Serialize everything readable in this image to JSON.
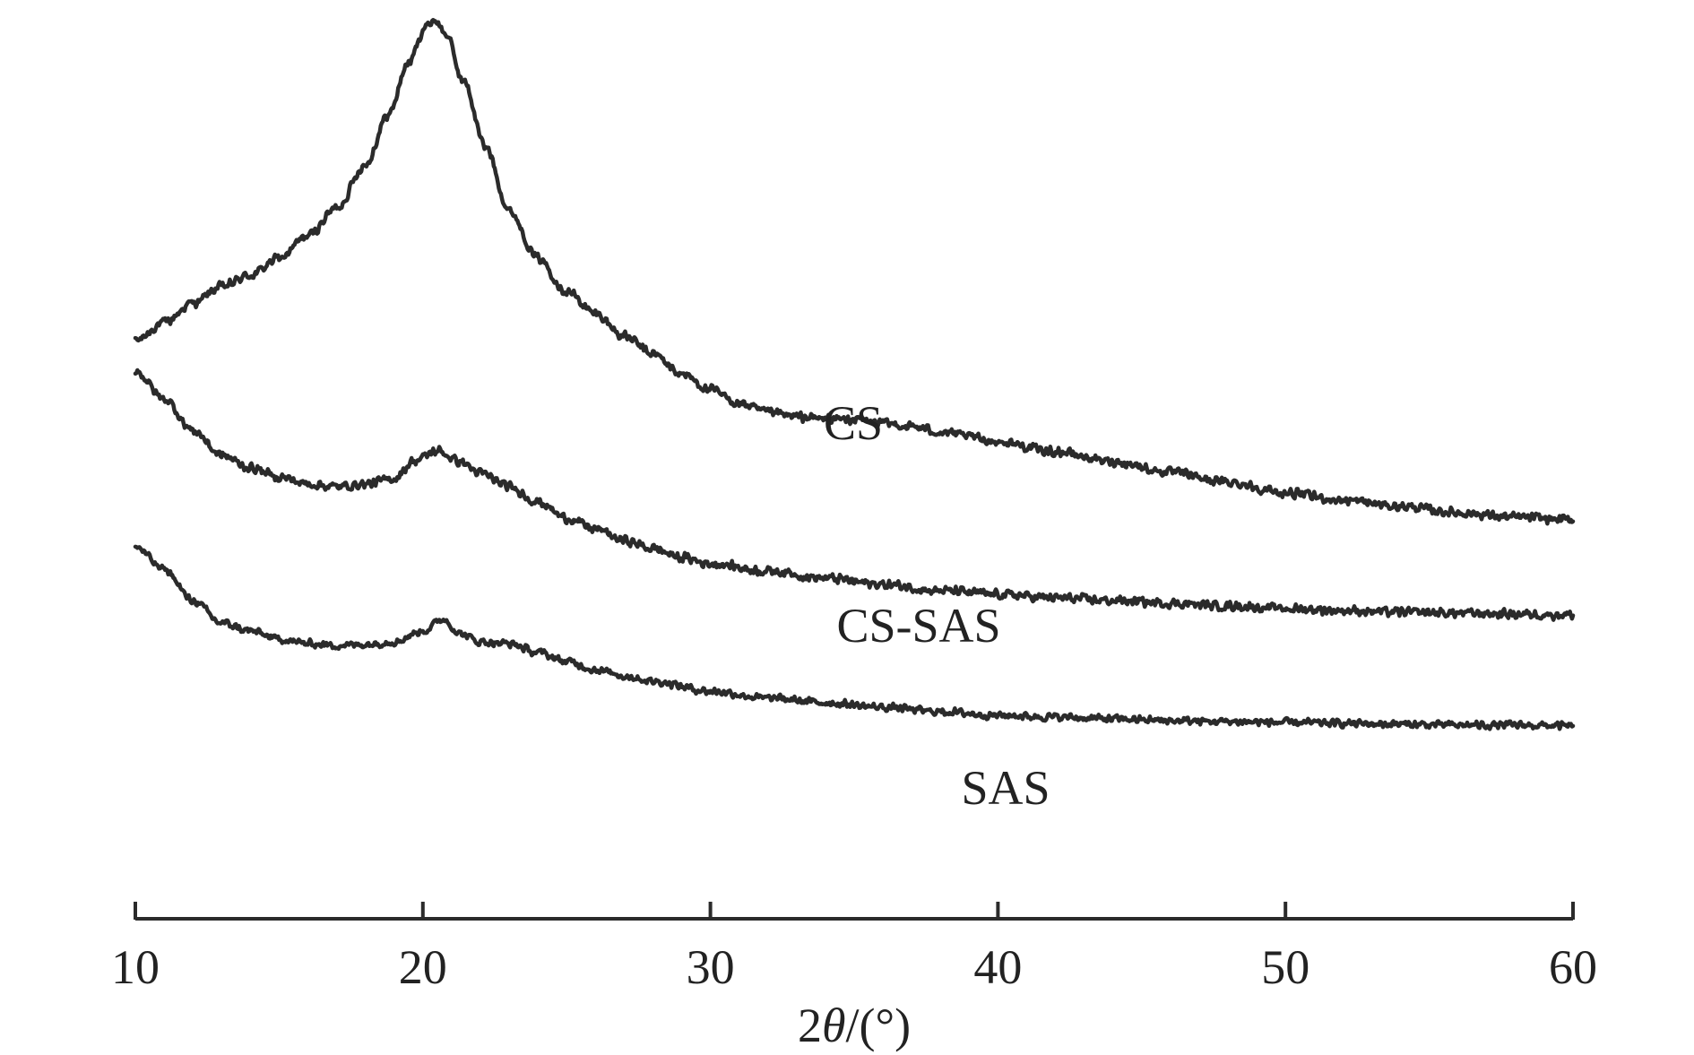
{
  "chart_data": {
    "type": "line",
    "xlabel_parts": [
      "2",
      "θ",
      "/(°)"
    ],
    "xlim": [
      10,
      60
    ],
    "x_ticks": [
      10,
      20,
      30,
      40,
      50,
      60
    ],
    "x_tick_labels": [
      "10",
      "20",
      "30",
      "40",
      "50",
      "60"
    ],
    "y_axis_shown": false,
    "grid": false,
    "series": [
      {
        "name": "CS",
        "points": [
          [
            10,
            0.62
          ],
          [
            11,
            0.64
          ],
          [
            12,
            0.662
          ],
          [
            13,
            0.68
          ],
          [
            14,
            0.693
          ],
          [
            15,
            0.712
          ],
          [
            16,
            0.737
          ],
          [
            17,
            0.768
          ],
          [
            18,
            0.816
          ],
          [
            18.8,
            0.872
          ],
          [
            19.5,
            0.93
          ],
          [
            20.1,
            0.97
          ],
          [
            20.4,
            0.978
          ],
          [
            20.8,
            0.962
          ],
          [
            21.4,
            0.91
          ],
          [
            22.2,
            0.835
          ],
          [
            23,
            0.765
          ],
          [
            24,
            0.712
          ],
          [
            25,
            0.675
          ],
          [
            26,
            0.65
          ],
          [
            27,
            0.625
          ],
          [
            28,
            0.605
          ],
          [
            29,
            0.583
          ],
          [
            30,
            0.565
          ],
          [
            31,
            0.55
          ],
          [
            32,
            0.54
          ],
          [
            33,
            0.535
          ],
          [
            34,
            0.533
          ],
          [
            35,
            0.532
          ],
          [
            36,
            0.528
          ],
          [
            37,
            0.524
          ],
          [
            38,
            0.518
          ],
          [
            39,
            0.513
          ],
          [
            40,
            0.507
          ],
          [
            42,
            0.496
          ],
          [
            44,
            0.485
          ],
          [
            46,
            0.473
          ],
          [
            48,
            0.462
          ],
          [
            50,
            0.45
          ],
          [
            52,
            0.442
          ],
          [
            54,
            0.435
          ],
          [
            56,
            0.428
          ],
          [
            58,
            0.423
          ],
          [
            60,
            0.42
          ]
        ],
        "noise": 0.006
      },
      {
        "name": "CS-SAS",
        "points": [
          [
            10,
            0.586
          ],
          [
            11,
            0.555
          ],
          [
            12,
            0.52
          ],
          [
            13,
            0.492
          ],
          [
            14,
            0.478
          ],
          [
            15,
            0.468
          ],
          [
            16,
            0.46
          ],
          [
            17,
            0.457
          ],
          [
            18,
            0.46
          ],
          [
            19,
            0.466
          ],
          [
            19.7,
            0.486
          ],
          [
            20.5,
            0.497
          ],
          [
            21.3,
            0.485
          ],
          [
            22,
            0.472
          ],
          [
            23,
            0.457
          ],
          [
            24,
            0.44
          ],
          [
            25,
            0.422
          ],
          [
            26,
            0.41
          ],
          [
            27,
            0.397
          ],
          [
            28,
            0.388
          ],
          [
            29,
            0.378
          ],
          [
            30,
            0.371
          ],
          [
            32,
            0.363
          ],
          [
            34,
            0.355
          ],
          [
            36,
            0.348
          ],
          [
            38,
            0.341
          ],
          [
            40,
            0.337
          ],
          [
            42,
            0.333
          ],
          [
            44,
            0.33
          ],
          [
            46,
            0.327
          ],
          [
            48,
            0.324
          ],
          [
            50,
            0.321
          ],
          [
            52,
            0.319
          ],
          [
            54,
            0.317
          ],
          [
            56,
            0.316
          ],
          [
            58,
            0.315
          ],
          [
            60,
            0.314
          ]
        ],
        "noise": 0.006
      },
      {
        "name": "SAS",
        "points": [
          [
            10,
            0.39
          ],
          [
            11,
            0.365
          ],
          [
            12,
            0.33
          ],
          [
            13,
            0.305
          ],
          [
            14,
            0.296
          ],
          [
            15,
            0.287
          ],
          [
            16,
            0.282
          ],
          [
            17,
            0.28
          ],
          [
            18,
            0.281
          ],
          [
            19,
            0.284
          ],
          [
            20,
            0.296
          ],
          [
            20.7,
            0.309
          ],
          [
            21.3,
            0.293
          ],
          [
            22,
            0.284
          ],
          [
            23,
            0.282
          ],
          [
            24,
            0.272
          ],
          [
            25,
            0.262
          ],
          [
            26,
            0.253
          ],
          [
            27,
            0.246
          ],
          [
            28,
            0.24
          ],
          [
            30,
            0.229
          ],
          [
            32,
            0.221
          ],
          [
            34,
            0.216
          ],
          [
            36,
            0.211
          ],
          [
            38,
            0.206
          ],
          [
            40,
            0.202
          ],
          [
            42,
            0.2
          ],
          [
            44,
            0.198
          ],
          [
            46,
            0.196
          ],
          [
            48,
            0.195
          ],
          [
            50,
            0.194
          ],
          [
            52,
            0.193
          ],
          [
            54,
            0.192
          ],
          [
            56,
            0.191
          ],
          [
            58,
            0.191
          ],
          [
            60,
            0.19
          ]
        ],
        "noise": 0.005
      }
    ]
  }
}
